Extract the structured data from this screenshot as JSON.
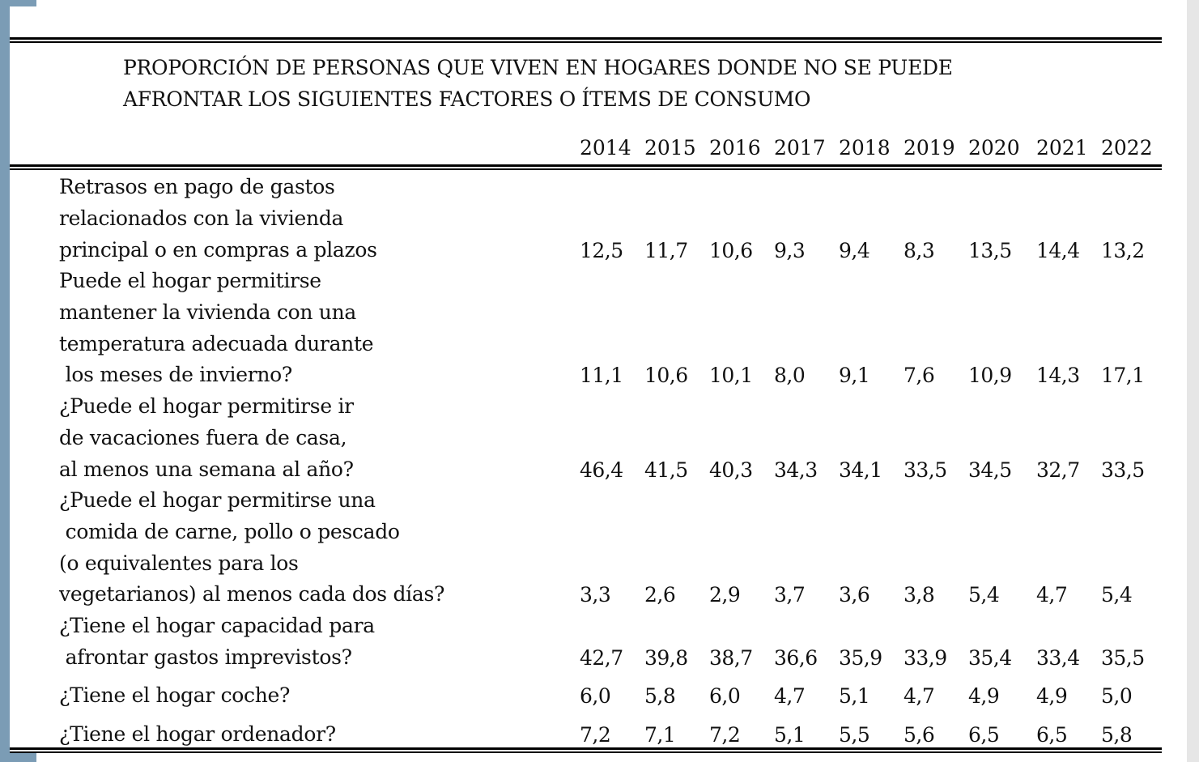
{
  "title": {
    "line1": "PROPORCIÓN DE PERSONAS QUE VIVEN EN HOGARES DONDE NO SE PUEDE",
    "line2": "AFRONTAR LOS SIGUIENTES FACTORES O ÍTEMS DE CONSUMO"
  },
  "years": [
    "2014",
    "2015",
    "2016",
    "2017",
    "2018",
    "2019",
    "2020",
    "2021",
    "2022"
  ],
  "rows": [
    {
      "label_lines": [
        "Retrasos en pago de gastos",
        "relacionados con la vivienda",
        "principal o en compras a plazos"
      ],
      "values": [
        "12,5",
        "11,7",
        "10,6",
        "9,3",
        "9,4",
        "8,3",
        "13,5",
        "14,4",
        "13,2"
      ]
    },
    {
      "label_lines": [
        "Puede el hogar permitirse",
        "mantener la vivienda con una",
        "temperatura adecuada durante",
        " los meses de invierno?"
      ],
      "values": [
        "11,1",
        "10,6",
        "10,1",
        "8,0",
        "9,1",
        "7,6",
        "10,9",
        "14,3",
        "17,1"
      ]
    },
    {
      "label_lines": [
        "¿Puede el hogar permitirse ir",
        "de vacaciones fuera de casa,",
        "al menos una semana al año?"
      ],
      "values": [
        "46,4",
        "41,5",
        "40,3",
        "34,3",
        "34,1",
        "33,5",
        "34,5",
        "32,7",
        "33,5"
      ]
    },
    {
      "label_lines": [
        "¿Puede el hogar permitirse una",
        " comida de carne, pollo o pescado",
        "(o equivalentes para los",
        "vegetarianos) al menos cada dos días?"
      ],
      "values": [
        "3,3",
        "2,6",
        "2,9",
        "3,7",
        "3,6",
        "3,8",
        "5,4",
        "4,7",
        "5,4"
      ]
    },
    {
      "label_lines": [
        "¿Tiene el hogar capacidad para",
        " afrontar gastos imprevistos?"
      ],
      "values": [
        "42,7",
        "39,8",
        "38,7",
        "36,6",
        "35,9",
        "33,9",
        "35,4",
        "33,4",
        "35,5"
      ]
    },
    {
      "label_lines": [
        "¿Tiene el hogar coche?"
      ],
      "values": [
        "6,0",
        "5,8",
        "6,0",
        "4,7",
        "5,1",
        "4,7",
        "4,9",
        "4,9",
        "5,0"
      ]
    },
    {
      "label_lines": [
        "¿Tiene el hogar ordenador?"
      ],
      "values": [
        "7,2",
        "7,1",
        "7,2",
        "5,1",
        "5,5",
        "5,6",
        "6,5",
        "6,5",
        "5,8"
      ]
    }
  ],
  "colors": {
    "left_bar": "#7b9cb5",
    "scrollbar": "#e6e6e6"
  }
}
